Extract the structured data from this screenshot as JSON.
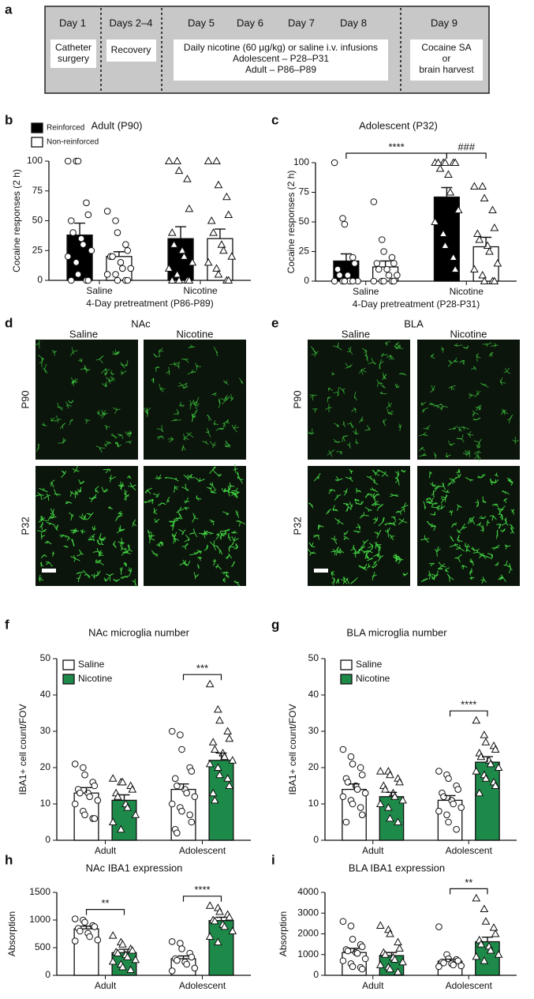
{
  "timeline": {
    "panel": "a",
    "days": [
      "Day 1",
      "Days 2–4",
      "Day 5",
      "Day 6",
      "Day 7",
      "Day 8",
      "Day 9"
    ],
    "boxes": [
      {
        "lines": [
          "Catheter",
          "surgery"
        ]
      },
      {
        "lines": [
          "Recovery"
        ]
      },
      {
        "lines": [
          "Daily nicotine (60 µg/kg) or saline i.v. infusions",
          "Adolescent – P28–P31",
          "Adult – P86–P89"
        ]
      },
      {
        "lines": [
          "Cocaine SA",
          "or",
          "brain harvest"
        ]
      }
    ]
  },
  "images": [
    {
      "panel": "d",
      "region": "NAc",
      "columns": [
        "Saline",
        "Nicotine"
      ],
      "rows": [
        "P90",
        "P32"
      ]
    },
    {
      "panel": "e",
      "region": "BLA",
      "columns": [
        "Saline",
        "Nicotine"
      ],
      "rows": [
        "P90",
        "P32"
      ]
    }
  ],
  "chart_data": [
    {
      "type": "bar_dot",
      "panel": "b",
      "title": "Adult (P90)",
      "y_label": "Cocaine responses (2 h)",
      "x_label": "4-Day pretreatment (P86-P89)",
      "categories": [
        "Saline",
        "Nicotine"
      ],
      "category_markers": [
        "circle",
        "triangle"
      ],
      "legend": "upper left",
      "ylim": [
        0,
        100
      ],
      "yticks": [
        0,
        25,
        50,
        75,
        100
      ],
      "series": [
        {
          "name": "Reinforced",
          "color": "#000000",
          "values": [
            38,
            35
          ],
          "errors": [
            10,
            10
          ],
          "points": [
            [
              100,
              100,
              100,
              65,
              55,
              50,
              40,
              35,
              30,
              25,
              20,
              15,
              5,
              0,
              0,
              0
            ],
            [
              100,
              100,
              92,
              85,
              60,
              40,
              30,
              25,
              20,
              15,
              10,
              5,
              0,
              0,
              0,
              0
            ]
          ]
        },
        {
          "name": "Non-reinforced",
          "color": "#ffffff",
          "values": [
            20,
            35
          ],
          "errors": [
            4,
            8
          ],
          "points": [
            [
              58,
              50,
              40,
              30,
              25,
              20,
              20,
              15,
              10,
              10,
              5,
              5,
              0,
              0,
              0
            ],
            [
              100,
              100,
              80,
              70,
              55,
              50,
              40,
              30,
              25,
              20,
              15,
              10,
              5,
              0,
              0
            ]
          ]
        }
      ],
      "annotations": []
    },
    {
      "type": "bar_dot",
      "panel": "c",
      "title": "Adolescent (P32)",
      "y_label": "Cocaine responses (2 h)",
      "x_label": "4-Day pretreatment (P28-P31)",
      "categories": [
        "Saline",
        "Nicotine"
      ],
      "category_markers": [
        "circle",
        "triangle"
      ],
      "ylim": [
        0,
        100
      ],
      "yticks": [
        0,
        25,
        50,
        75,
        100
      ],
      "series": [
        {
          "color": "#000000",
          "values": [
            17,
            71
          ],
          "errors": [
            6,
            8
          ],
          "points": [
            [
              100,
              53,
              48,
              20,
              15,
              10,
              5,
              5,
              0,
              0,
              0,
              0,
              0,
              0
            ],
            [
              100,
              100,
              100,
              100,
              100,
              100,
              95,
              90,
              75,
              60,
              50,
              40,
              30,
              20,
              10
            ]
          ]
        },
        {
          "color": "#ffffff",
          "values": [
            12,
            29
          ],
          "errors": [
            5,
            8
          ],
          "points": [
            [
              67,
              35,
              25,
              20,
              15,
              15,
              10,
              10,
              5,
              5,
              0,
              0,
              0,
              0,
              0
            ],
            [
              80,
              80,
              70,
              60,
              45,
              40,
              35,
              30,
              25,
              15,
              10,
              5,
              0,
              0,
              0
            ]
          ]
        }
      ],
      "annotations": [
        {
          "text": "****",
          "from": [
            0,
            0
          ],
          "to": [
            0,
            1
          ]
        },
        {
          "text": "###",
          "from": [
            0,
            1
          ],
          "to": [
            1,
            1
          ]
        }
      ]
    },
    {
      "type": "bar_dot",
      "panel": "f",
      "title": "NAc microglia number",
      "y_label": "IBA1+ cell count/FOV",
      "categories": [
        "Adult",
        "Adolescent"
      ],
      "legend": "upper left",
      "ylim": [
        0,
        50
      ],
      "yticks": [
        0,
        10,
        20,
        30,
        40,
        50
      ],
      "series": [
        {
          "name": "Saline",
          "color": "#ffffff",
          "marker": "circle",
          "values": [
            13,
            14
          ],
          "errors": [
            1.5,
            1.5
          ],
          "points": [
            [
              21,
              20,
              18,
              16,
              15,
              14,
              13,
              13,
              12,
              11,
              10,
              8,
              7,
              6,
              6
            ],
            [
              30,
              29,
              25,
              20,
              19,
              17,
              15,
              14,
              13,
              12,
              10,
              9,
              8,
              7,
              5,
              3,
              2
            ]
          ]
        },
        {
          "name": "Nicotine",
          "color": "#1e8a4a",
          "marker": "triangle",
          "values": [
            11,
            22
          ],
          "errors": [
            1.5,
            2
          ],
          "points": [
            [
              17,
              16,
              16,
              15,
              14,
              13,
              12,
              10,
              9,
              7,
              5,
              3
            ],
            [
              43,
              36,
              33,
              30,
              28,
              27,
              25,
              24,
              23,
              22,
              21,
              20,
              18,
              17,
              15,
              13,
              11
            ]
          ]
        }
      ],
      "annotations": [
        {
          "text": "***",
          "from": [
            0,
            1
          ],
          "to": [
            1,
            1
          ]
        }
      ]
    },
    {
      "type": "bar_dot",
      "panel": "g",
      "title": "BLA  microglia number",
      "y_label": "IBA1+ cell count/FOV",
      "categories": [
        "Adult",
        "Adolescent"
      ],
      "legend": "upper left",
      "ylim": [
        0,
        50
      ],
      "yticks": [
        0,
        10,
        20,
        30,
        40,
        50
      ],
      "series": [
        {
          "name": "Saline",
          "color": "#ffffff",
          "marker": "circle",
          "values": [
            14,
            11
          ],
          "errors": [
            1.5,
            1.3
          ],
          "points": [
            [
              25,
              23,
              21,
              20,
              18,
              17,
              16,
              15,
              14,
              13,
              12,
              11,
              10,
              9,
              7,
              5
            ],
            [
              19,
              18,
              17,
              15,
              14,
              13,
              12,
              11,
              10,
              9,
              8,
              7,
              5,
              3
            ]
          ]
        },
        {
          "name": "Nicotine",
          "color": "#1e8a4a",
          "marker": "triangle",
          "values": [
            12,
            21.5
          ],
          "errors": [
            1.2,
            1.5
          ],
          "points": [
            [
              19,
              19,
              18,
              17,
              16,
              15,
              14,
              13,
              12,
              11,
              10,
              9,
              6,
              5
            ],
            [
              33,
              29,
              27,
              26,
              25,
              24,
              23,
              22,
              21,
              20,
              19,
              18,
              17,
              16,
              15,
              13
            ]
          ]
        }
      ],
      "annotations": [
        {
          "text": "****",
          "from": [
            0,
            1
          ],
          "to": [
            1,
            1
          ]
        }
      ]
    },
    {
      "type": "bar_dot",
      "panel": "h",
      "title": "NAc IBA1 expression",
      "y_label": "Absorption",
      "categories": [
        "Adult",
        "Adolescent"
      ],
      "ylim": [
        0,
        1500
      ],
      "yticks": [
        0,
        500,
        1000,
        1500
      ],
      "series": [
        {
          "color": "#ffffff",
          "marker": "circle",
          "values": [
            840,
            300
          ],
          "errors": [
            50,
            50
          ],
          "points": [
            [
              1020,
              1000,
              960,
              900,
              880,
              850,
              800,
              760,
              700,
              640,
              620
            ],
            [
              610,
              580,
              480,
              400,
              330,
              300,
              270,
              240,
              200,
              130,
              80
            ]
          ]
        },
        {
          "color": "#1e8a4a",
          "marker": "triangle",
          "values": [
            410,
            990
          ],
          "errors": [
            60,
            60
          ],
          "points": [
            [
              720,
              600,
              560,
              480,
              450,
              420,
              400,
              370,
              330,
              280,
              250,
              200,
              150,
              100
            ],
            [
              1260,
              1220,
              1150,
              1100,
              1050,
              1000,
              980,
              920,
              880,
              800,
              700,
              600
            ]
          ]
        }
      ],
      "annotations": [
        {
          "text": "**",
          "from": [
            0,
            0
          ],
          "to": [
            1,
            0
          ]
        },
        {
          "text": "****",
          "from": [
            0,
            1
          ],
          "to": [
            1,
            1
          ]
        }
      ]
    },
    {
      "type": "bar_dot",
      "panel": "i",
      "title": "BLA IBA1 expression",
      "y_label": "Absorption",
      "categories": [
        "Adult",
        "Adolescent"
      ],
      "ylim": [
        0,
        4000
      ],
      "yticks": [
        0,
        1000,
        2000,
        3000,
        4000
      ],
      "series": [
        {
          "color": "#ffffff",
          "marker": "circle",
          "values": [
            1100,
            680
          ],
          "errors": [
            200,
            100
          ],
          "points": [
            [
              2600,
              2380,
              1740,
              1480,
              1380,
              1240,
              1180,
              1100,
              1060,
              800,
              700,
              560,
              420,
              380,
              300
            ],
            [
              2340,
              1000,
              800,
              760,
              700,
              640,
              600,
              560,
              500,
              460,
              420
            ]
          ]
        },
        {
          "color": "#1e8a4a",
          "marker": "triangle",
          "values": [
            950,
            1620
          ],
          "errors": [
            150,
            220
          ],
          "points": [
            [
              2400,
              2200,
              2000,
              1600,
              1300,
              1100,
              1000,
              860,
              760,
              640,
              500,
              400,
              300,
              160
            ],
            [
              3720,
              3200,
              2600,
              2300,
              2000,
              1700,
              1500,
              1400,
              1200,
              1000,
              900,
              700
            ]
          ]
        }
      ],
      "annotations": [
        {
          "text": "**",
          "from": [
            0,
            1
          ],
          "to": [
            1,
            1
          ]
        }
      ]
    }
  ]
}
